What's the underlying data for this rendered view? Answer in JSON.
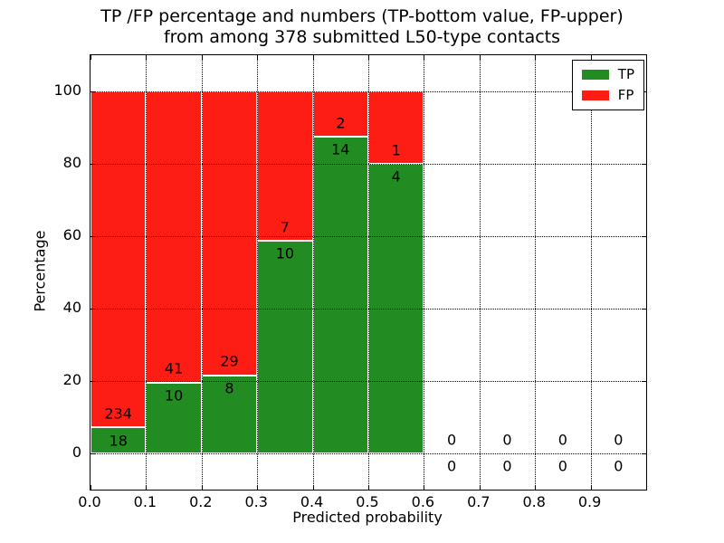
{
  "chart_data": {
    "type": "bar",
    "stacked": true,
    "title_line1": "TP /FP percentage and numbers (TP-bottom value, FP-upper)",
    "title_line2": "from among 378 submitted L50-type contacts",
    "xlabel": "Predicted probability",
    "ylabel": "Percentage",
    "x_ticks": [
      "0.0",
      "0.1",
      "0.2",
      "0.3",
      "0.4",
      "0.5",
      "0.6",
      "0.7",
      "0.8",
      "0.9"
    ],
    "y_ticks": [
      "0",
      "20",
      "40",
      "60",
      "80",
      "100"
    ],
    "xlim": [
      0.0,
      1.0
    ],
    "ylim": [
      -10,
      110
    ],
    "bin_width": 0.1,
    "grid": true,
    "total_contacts": 378,
    "legend_position": "upper right",
    "legend": [
      {
        "name": "TP",
        "color": "#228b22"
      },
      {
        "name": "FP",
        "color": "#fd1d15"
      }
    ],
    "bins": [
      {
        "x_start": 0.0,
        "tp": 18,
        "fp": 234
      },
      {
        "x_start": 0.1,
        "tp": 10,
        "fp": 41
      },
      {
        "x_start": 0.2,
        "tp": 8,
        "fp": 29
      },
      {
        "x_start": 0.3,
        "tp": 10,
        "fp": 7
      },
      {
        "x_start": 0.4,
        "tp": 14,
        "fp": 2
      },
      {
        "x_start": 0.5,
        "tp": 4,
        "fp": 1
      },
      {
        "x_start": 0.6,
        "tp": 0,
        "fp": 0
      },
      {
        "x_start": 0.7,
        "tp": 0,
        "fp": 0
      },
      {
        "x_start": 0.8,
        "tp": 0,
        "fp": 0
      },
      {
        "x_start": 0.9,
        "tp": 0,
        "fp": 0
      }
    ]
  }
}
